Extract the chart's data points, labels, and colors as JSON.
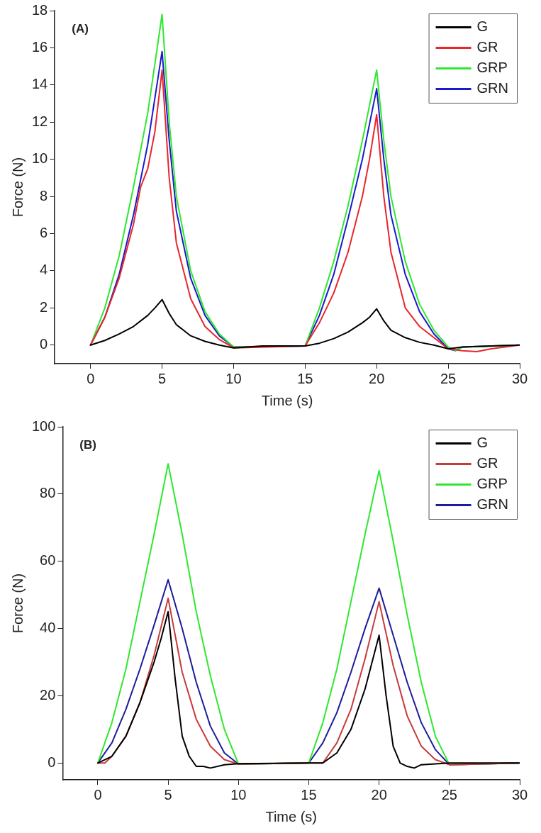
{
  "chart_data": [
    {
      "type": "line",
      "xlabel": "Time (s)",
      "ylabel": "Force (N)",
      "annotations": [
        "(A)"
      ],
      "xlim": [
        -2.5,
        30
      ],
      "xticks": [
        0,
        5,
        10,
        15,
        20,
        25,
        30
      ],
      "ylim": [
        -1,
        18
      ],
      "yticks": [
        0,
        2,
        4,
        6,
        8,
        10,
        12,
        14,
        16,
        18
      ],
      "grid": false,
      "legend": "top right",
      "marker": "none",
      "line_style": "solid",
      "series": [
        {
          "name": "G",
          "color": "#000000",
          "x": [
            0,
            1,
            2,
            3,
            4,
            4.5,
            5,
            5.5,
            6,
            7,
            8,
            9,
            10,
            12,
            15,
            16,
            17,
            18,
            19,
            19.5,
            20,
            20.5,
            21,
            22,
            23,
            24,
            25,
            26,
            28,
            30
          ],
          "values": [
            0,
            0.25,
            0.6,
            1.0,
            1.6,
            2.0,
            2.45,
            1.7,
            1.1,
            0.5,
            0.2,
            0,
            -0.15,
            -0.05,
            -0.05,
            0.1,
            0.35,
            0.7,
            1.2,
            1.5,
            1.95,
            1.3,
            0.8,
            0.4,
            0.15,
            0,
            -0.2,
            -0.1,
            -0.05,
            0
          ]
        },
        {
          "name": "GR",
          "color": "#e8262b",
          "x": [
            0,
            1,
            2,
            3,
            3.5,
            4,
            4.5,
            5,
            5.5,
            6,
            7,
            8,
            9,
            10,
            15,
            16,
            17,
            18,
            19,
            19.5,
            20,
            20.5,
            21,
            22,
            23,
            24,
            25,
            26,
            27,
            28,
            30
          ],
          "values": [
            0,
            1.5,
            3.6,
            6.5,
            8.5,
            9.5,
            11.5,
            14.8,
            9,
            5.5,
            2.5,
            1.0,
            0.3,
            -0.15,
            -0.05,
            1.2,
            2.8,
            5.0,
            8.0,
            10,
            12.4,
            8,
            5,
            2.0,
            1.0,
            0.4,
            -0.2,
            -0.3,
            -0.35,
            -0.2,
            0
          ]
        },
        {
          "name": "GRP",
          "color": "#2ee82e",
          "x": [
            0,
            1,
            2,
            3,
            4,
            5,
            5.5,
            6,
            7,
            8,
            9,
            10,
            15,
            16,
            17,
            18,
            19,
            20,
            20.5,
            21,
            22,
            23,
            24,
            25,
            25.5,
            26,
            30
          ],
          "values": [
            0,
            2.0,
            4.8,
            8.5,
            12.5,
            17.8,
            12,
            8,
            4,
            1.8,
            0.6,
            -0.1,
            -0.05,
            2.0,
            4.5,
            7.5,
            11,
            14.8,
            11,
            8,
            4.5,
            2.2,
            0.8,
            -0.1,
            -0.3,
            -0.1,
            0
          ]
        },
        {
          "name": "GRN",
          "color": "#1a1acc",
          "x": [
            0,
            1,
            2,
            3,
            4,
            5,
            5.5,
            6,
            7,
            8,
            9,
            10,
            15,
            16,
            17,
            18,
            19,
            20,
            20.5,
            21,
            22,
            23,
            24,
            25,
            25.5,
            26,
            30
          ],
          "values": [
            0,
            1.5,
            3.8,
            7,
            10.8,
            15.8,
            11,
            7.2,
            3.6,
            1.6,
            0.5,
            -0.1,
            -0.05,
            1.6,
            3.8,
            6.8,
            10,
            13.8,
            10,
            7,
            3.8,
            1.8,
            0.6,
            -0.2,
            -0.3,
            -0.1,
            0
          ]
        }
      ]
    },
    {
      "type": "line",
      "xlabel": "Time (s)",
      "ylabel": "Force (N)",
      "annotations": [
        "(B)"
      ],
      "xlim": [
        -2.5,
        30
      ],
      "xticks": [
        0,
        5,
        10,
        15,
        20,
        25,
        30
      ],
      "ylim": [
        -5,
        100
      ],
      "yticks": [
        0,
        20,
        40,
        60,
        80,
        100
      ],
      "grid": false,
      "legend": "top right",
      "marker": "none",
      "line_style": "solid",
      "series": [
        {
          "name": "G",
          "color": "#000000",
          "x": [
            0,
            1,
            2,
            3,
            4,
            4.5,
            5,
            5.5,
            6,
            6.5,
            7,
            7.5,
            8,
            9,
            10,
            15,
            16,
            17,
            18,
            19,
            20,
            20.5,
            21,
            21.5,
            22,
            22.5,
            23,
            25,
            30
          ],
          "values": [
            0,
            2,
            8,
            18,
            30,
            37,
            45,
            25,
            8,
            2,
            -1,
            -1,
            -1.5,
            -0.5,
            -0.2,
            0,
            0,
            3,
            10,
            22,
            38,
            20,
            5,
            0,
            -1,
            -1.5,
            -0.5,
            0,
            0
          ]
        },
        {
          "name": "GR",
          "color": "#c83a3a",
          "x": [
            0,
            0.5,
            1,
            2,
            3,
            4,
            5,
            5.5,
            6,
            7,
            8,
            9,
            10,
            15,
            16,
            17,
            18,
            19,
            20,
            21,
            22,
            23,
            24,
            25,
            30
          ],
          "values": [
            0,
            0,
            2,
            8,
            18,
            32,
            49,
            38,
            27,
            13,
            5,
            1,
            -0.3,
            0,
            0,
            6,
            16,
            31,
            48,
            29,
            14,
            5,
            1,
            -0.5,
            0
          ]
        },
        {
          "name": "GRP",
          "color": "#2ee82e",
          "x": [
            0,
            1,
            2,
            3,
            4,
            5,
            6,
            7,
            8,
            9,
            10,
            15,
            16,
            17,
            18,
            19,
            20,
            21,
            22,
            23,
            24,
            25,
            30
          ],
          "values": [
            0,
            12,
            28,
            48,
            68,
            89,
            68,
            45,
            26,
            10,
            -0.3,
            0,
            12,
            28,
            48,
            68,
            87,
            66,
            44,
            24,
            8,
            -0.5,
            0
          ]
        },
        {
          "name": "GRN",
          "color": "#1c1c9c",
          "x": [
            0,
            1,
            2,
            3,
            4,
            5,
            6,
            7,
            8,
            9,
            10,
            15,
            16,
            17,
            18,
            19,
            20,
            21,
            22,
            23,
            24,
            25,
            30
          ],
          "values": [
            0,
            6,
            16,
            28,
            41,
            54.5,
            40,
            24,
            11,
            3,
            -0.3,
            0,
            6,
            15,
            27,
            40,
            52,
            38,
            24,
            12,
            4,
            -0.5,
            0
          ]
        }
      ]
    }
  ]
}
